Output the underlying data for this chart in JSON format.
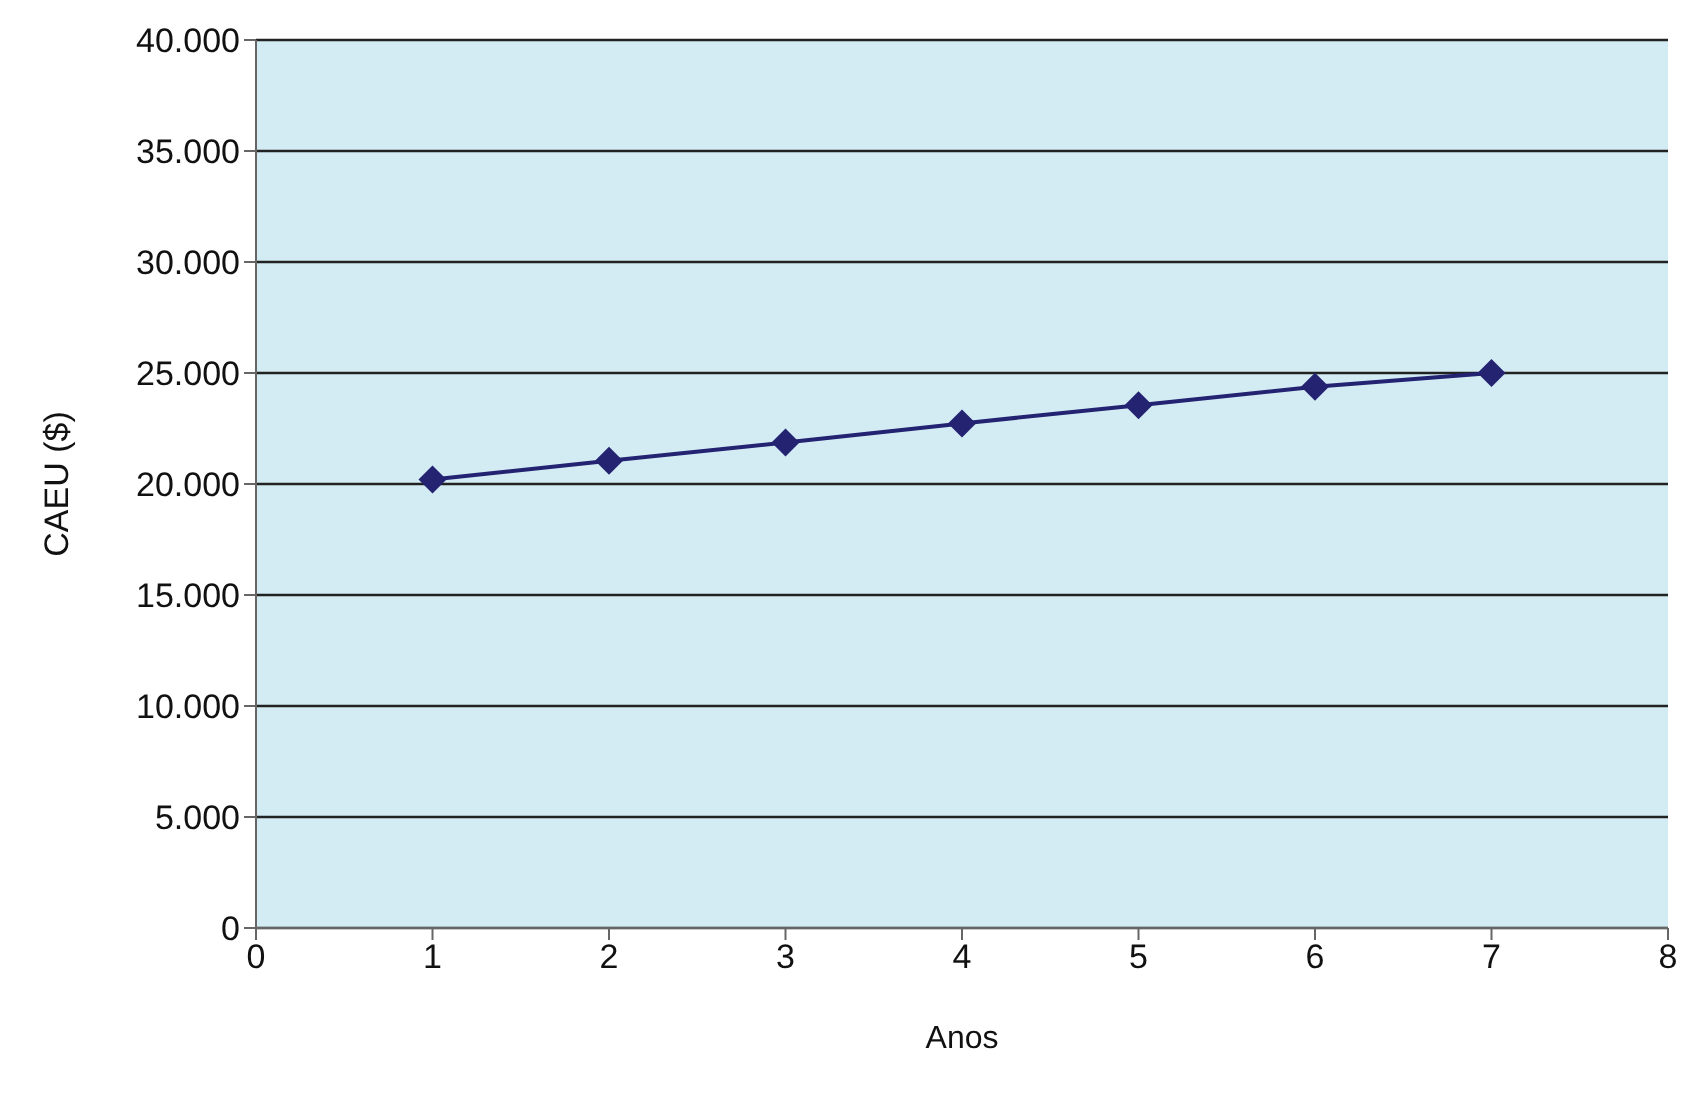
{
  "chart_data": {
    "type": "line",
    "xlabel": "Anos",
    "ylabel": "CAEU ($)",
    "x": [
      1,
      2,
      3,
      4,
      5,
      6,
      7
    ],
    "series": [
      {
        "color": "#232372",
        "values": [
          20200,
          21050,
          21870,
          22730,
          23550,
          24380,
          25000
        ]
      }
    ],
    "xlim": [
      0,
      8
    ],
    "xticks": [
      0,
      1,
      2,
      3,
      4,
      5,
      6,
      7,
      8
    ],
    "ylim": [
      0,
      40000
    ],
    "yticks": [
      {
        "value": 0,
        "label": "0"
      },
      {
        "value": 5000,
        "label": "5.000"
      },
      {
        "value": 10000,
        "label": "10.000"
      },
      {
        "value": 15000,
        "label": "15.000"
      },
      {
        "value": 20000,
        "label": "20.000"
      },
      {
        "value": 25000,
        "label": "25.000"
      },
      {
        "value": 30000,
        "label": "30.000"
      },
      {
        "value": 35000,
        "label": "35.000"
      },
      {
        "value": 40000,
        "label": "40.000"
      }
    ],
    "grid": "y",
    "marker": "diamond",
    "line_style": "solid",
    "legend": false
  }
}
